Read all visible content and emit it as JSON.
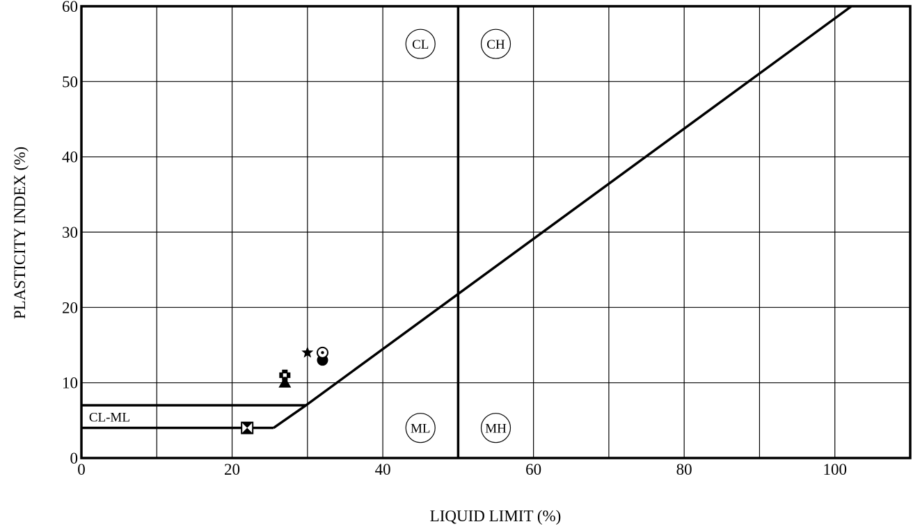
{
  "chart_data": {
    "type": "scatter",
    "title": "",
    "xlabel": "LIQUID LIMIT (%)",
    "ylabel": "PLASTICITY INDEX (%)",
    "xlim": [
      0,
      110
    ],
    "ylim": [
      0,
      60
    ],
    "x_ticks": [
      0,
      20,
      40,
      60,
      80,
      100
    ],
    "y_ticks": [
      0,
      10,
      20,
      30,
      40,
      50,
      60
    ],
    "grid": true,
    "x_gridlines": [
      0,
      10,
      20,
      30,
      40,
      50,
      60,
      70,
      80,
      90,
      100,
      110
    ],
    "y_gridlines": [
      0,
      10,
      20,
      30,
      40,
      50,
      60
    ],
    "reference_lines": [
      {
        "name": "A-line",
        "points": [
          [
            25.5,
            4
          ],
          [
            29.8,
            7
          ],
          [
            102.2,
            60
          ]
        ]
      },
      {
        "name": "LL = 50",
        "points": [
          [
            50,
            0
          ],
          [
            50,
            60
          ]
        ]
      },
      {
        "name": "PI = 7",
        "points": [
          [
            0,
            7
          ],
          [
            29.8,
            7
          ]
        ]
      },
      {
        "name": "PI = 4",
        "points": [
          [
            0,
            4
          ],
          [
            25.5,
            4
          ]
        ]
      }
    ],
    "zones": [
      {
        "label": "CL",
        "x": 45,
        "y": 55
      },
      {
        "label": "CH",
        "x": 55,
        "y": 55
      },
      {
        "label": "ML",
        "x": 45,
        "y": 4
      },
      {
        "label": "MH",
        "x": 55,
        "y": 4
      }
    ],
    "zone_text": {
      "label": "CL-ML",
      "x": 1,
      "y": 5.5
    },
    "points": [
      {
        "marker": "filled-circle",
        "x": 32,
        "y": 13
      },
      {
        "marker": "open-circle-dot",
        "x": 32,
        "y": 14
      },
      {
        "marker": "star",
        "x": 30,
        "y": 14
      },
      {
        "marker": "cross-square",
        "x": 27,
        "y": 11
      },
      {
        "marker": "filled-triangle",
        "x": 27,
        "y": 10
      },
      {
        "marker": "hourglass",
        "x": 22,
        "y": 4
      }
    ]
  }
}
